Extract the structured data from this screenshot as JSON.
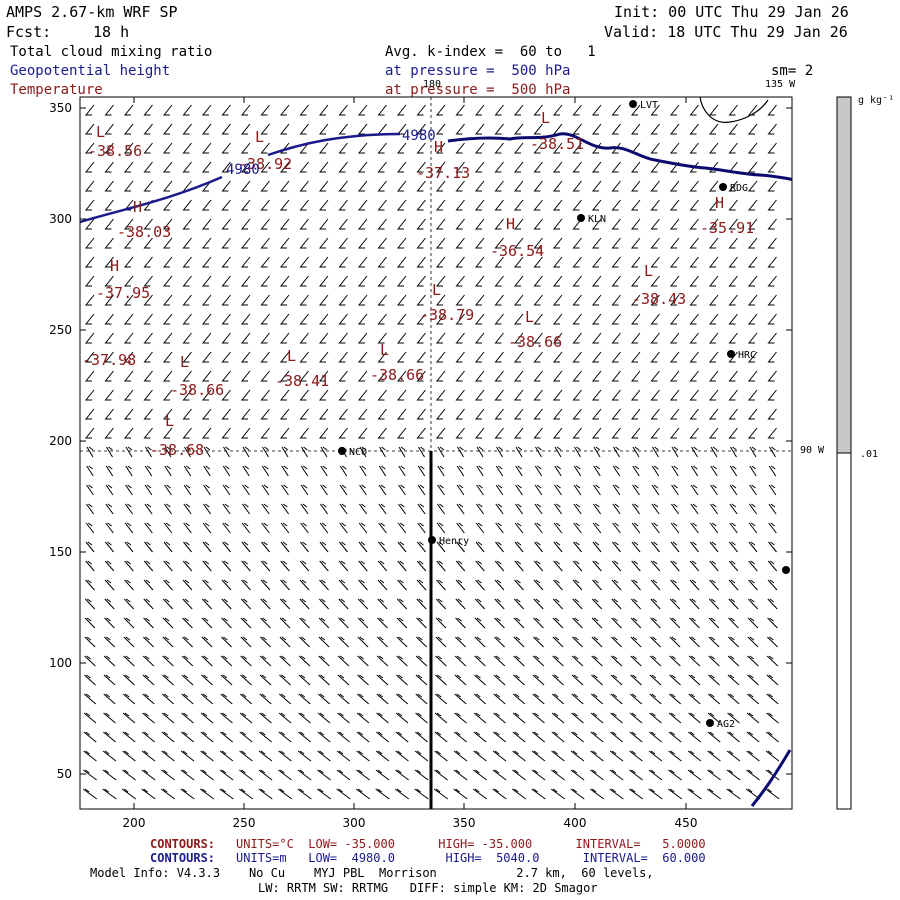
{
  "header": {
    "model": "AMPS 2.67-km WRF SP",
    "init": "Init: 00 UTC Thu 29 Jan 26",
    "fcst_label": "Fcst:",
    "fcst_value": "18 h",
    "valid": "Valid: 18 UTC Thu 29 Jan 26",
    "var1": "Total cloud mixing ratio",
    "var1_desc": "Avg. k-index =  60 to   1",
    "var2": "Geopotential height",
    "var2_desc": "at pressure =  500 hPa",
    "var3": "Temperature",
    "var3_desc": "at pressure =  500 hPa",
    "smooth": "sm= 2"
  },
  "colorbar": {
    "unit": "g kg⁻¹",
    "low_label": ".01"
  },
  "axes": {
    "x_ticks": [
      "200",
      "250",
      "300",
      "350",
      "400",
      "450"
    ],
    "y_ticks": [
      "350",
      "300",
      "250",
      "200",
      "150",
      "100",
      "50"
    ]
  },
  "lon_labels": {
    "lon1": "180",
    "lon2": "135 W",
    "lon3": "90 W"
  },
  "stations": [
    {
      "name": "KLN"
    },
    {
      "name": "RDG"
    },
    {
      "name": "HRC"
    },
    {
      "name": "NCO"
    },
    {
      "name": "Henry"
    },
    {
      "name": "AG2"
    },
    {
      "name": "LVT"
    },
    {
      "name": ""
    }
  ],
  "height_labels": [
    "4980",
    "4980"
  ],
  "temp_labels": [
    {
      "hl": "L",
      "val": "-38.56"
    },
    {
      "hl": "L",
      "val": "-38.92"
    },
    {
      "hl": "H",
      "val": "-37.13"
    },
    {
      "hl": "L",
      "val": "-38.51"
    },
    {
      "hl": "H",
      "val": "-38.03"
    },
    {
      "hl": "H",
      "val": "-36.54"
    },
    {
      "hl": "H",
      "val": "-35.91"
    },
    {
      "hl": "H",
      "val": "-37.95"
    },
    {
      "hl": "L",
      "val": "-38.43"
    },
    {
      "hl": "L",
      "val": "-38.79"
    },
    {
      "hl": "L",
      "val": "-38.66"
    },
    {
      "hl": "",
      "val": "-37.98"
    },
    {
      "hl": "L",
      "val": "-38.66"
    },
    {
      "hl": "L",
      "val": "-38.41"
    },
    {
      "hl": "L",
      "val": "-38.66"
    },
    {
      "hl": "L",
      "val": "-38.68"
    }
  ],
  "footer": {
    "line1_label": "CONTOURS:",
    "line1": "UNITS=°C  LOW= -35.000      HIGH= -35.000      INTERVAL=   5.0000",
    "line2_label": "CONTOURS:",
    "line2": "UNITS=m   LOW=  4980.0       HIGH=  5040.0      INTERVAL=  60.000",
    "info1": "Model Info: V4.3.3    No Cu    MYJ PBL  Morrison           2.7 km,  60 levels,",
    "info2": "LW: RRTM SW: RRTMG   DIFF: simple KM: 2D Smagor"
  },
  "colors": {
    "height_contour": "#1a1a8c",
    "coastline": "#0b0b70",
    "temperature": "#8b1a1a",
    "colorbar_fill": "#c8c8c8"
  }
}
